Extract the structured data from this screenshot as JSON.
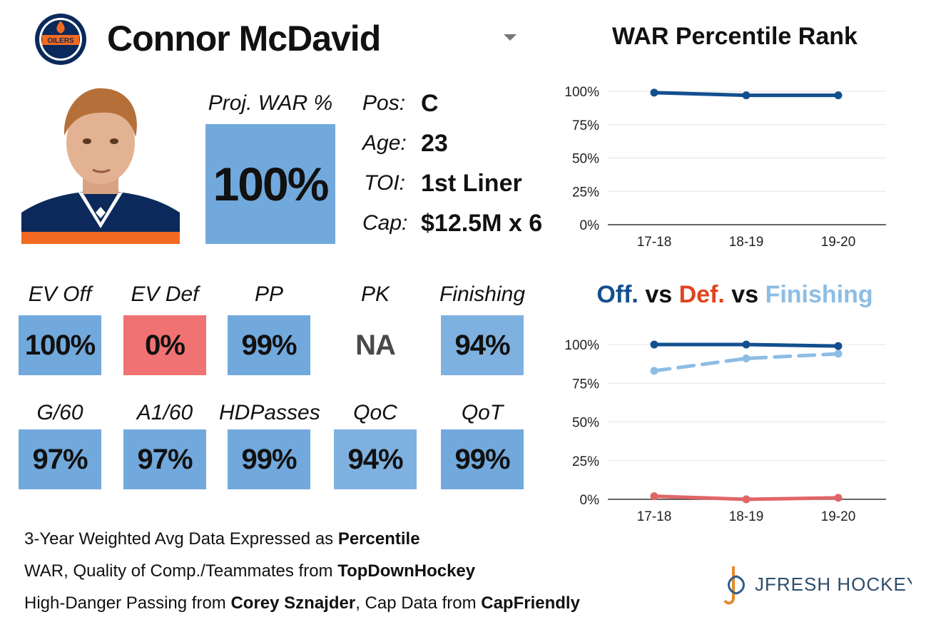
{
  "player": {
    "name": "Connor McDavid",
    "team_logo_text": "OILERS",
    "proj_war_label": "Proj. WAR %",
    "proj_war_value": "100%",
    "info": [
      {
        "label": "Pos:",
        "value": "C"
      },
      {
        "label": "Age:",
        "value": "23"
      },
      {
        "label": "TOI:",
        "value": "1st Liner"
      },
      {
        "label": "Cap:",
        "value": "$12.5M x 6"
      }
    ]
  },
  "stats_row1": [
    {
      "label": "EV Off",
      "value": "100%",
      "color": "#72a9dc"
    },
    {
      "label": "EV Def",
      "value": "0%",
      "color": "#f07272"
    },
    {
      "label": "PP",
      "value": "99%",
      "color": "#72a9dc"
    },
    {
      "label": "PK",
      "value": "NA",
      "color": "#ffffff",
      "text_color": "#4a4a4a"
    },
    {
      "label": "Finishing",
      "value": "94%",
      "color": "#7fb1e0"
    }
  ],
  "stats_row2": [
    {
      "label": "G/60",
      "value": "97%",
      "color": "#72a9dc"
    },
    {
      "label": "A1/60",
      "value": "97%",
      "color": "#72a9dc"
    },
    {
      "label": "HDPasses",
      "value": "99%",
      "color": "#72a9dc"
    },
    {
      "label": "QoC",
      "value": "94%",
      "color": "#7fb1e0"
    },
    {
      "label": "QoT",
      "value": "99%",
      "color": "#72a9dc"
    }
  ],
  "footer": {
    "line1_prefix": "3-Year Weighted Avg Data Expressed as ",
    "line1_bold": "Percentile",
    "line2_prefix": "WAR, Quality of Comp./Teammates from ",
    "line2_bold": "TopDownHockey",
    "line3_prefix": "High-Danger Passing from ",
    "line3_bold1": "Corey Sznajder",
    "line3_mid": ", Cap Data from ",
    "line3_bold2": "CapFriendly"
  },
  "brand": {
    "text": "JFRESH HOCKEY"
  },
  "chart2_title_parts": {
    "off": "Off.",
    "vs1": " vs ",
    "def": "Def.",
    "vs2": " vs ",
    "fin": "Finishing"
  },
  "colors": {
    "dark_blue": "#124f8f",
    "red": "#e0441e",
    "light_blue": "#8dbde4",
    "def_red": "#e06666"
  },
  "chart_data": [
    {
      "type": "line",
      "title": "WAR Percentile Rank",
      "categories": [
        "17-18",
        "18-19",
        "19-20"
      ],
      "y_ticks": [
        "0%",
        "25%",
        "50%",
        "75%",
        "100%"
      ],
      "ylim": [
        0,
        100
      ],
      "grid": true,
      "series": [
        {
          "values": [
            99,
            97,
            97
          ],
          "color": "#124f8f",
          "dashed": false
        }
      ]
    },
    {
      "type": "line",
      "title": "Off. vs Def. vs Finishing",
      "categories": [
        "17-18",
        "18-19",
        "19-20"
      ],
      "y_ticks": [
        "0%",
        "25%",
        "50%",
        "75%",
        "100%"
      ],
      "ylim": [
        0,
        100
      ],
      "grid": true,
      "series": [
        {
          "name": "Off.",
          "values": [
            100,
            100,
            99
          ],
          "color": "#124f8f",
          "dashed": false
        },
        {
          "name": "Finishing",
          "values": [
            83,
            91,
            94
          ],
          "color": "#8dbde4",
          "dashed": true
        },
        {
          "name": "Def.",
          "values": [
            2,
            0,
            1
          ],
          "color": "#e06666",
          "dashed": false
        }
      ]
    }
  ]
}
